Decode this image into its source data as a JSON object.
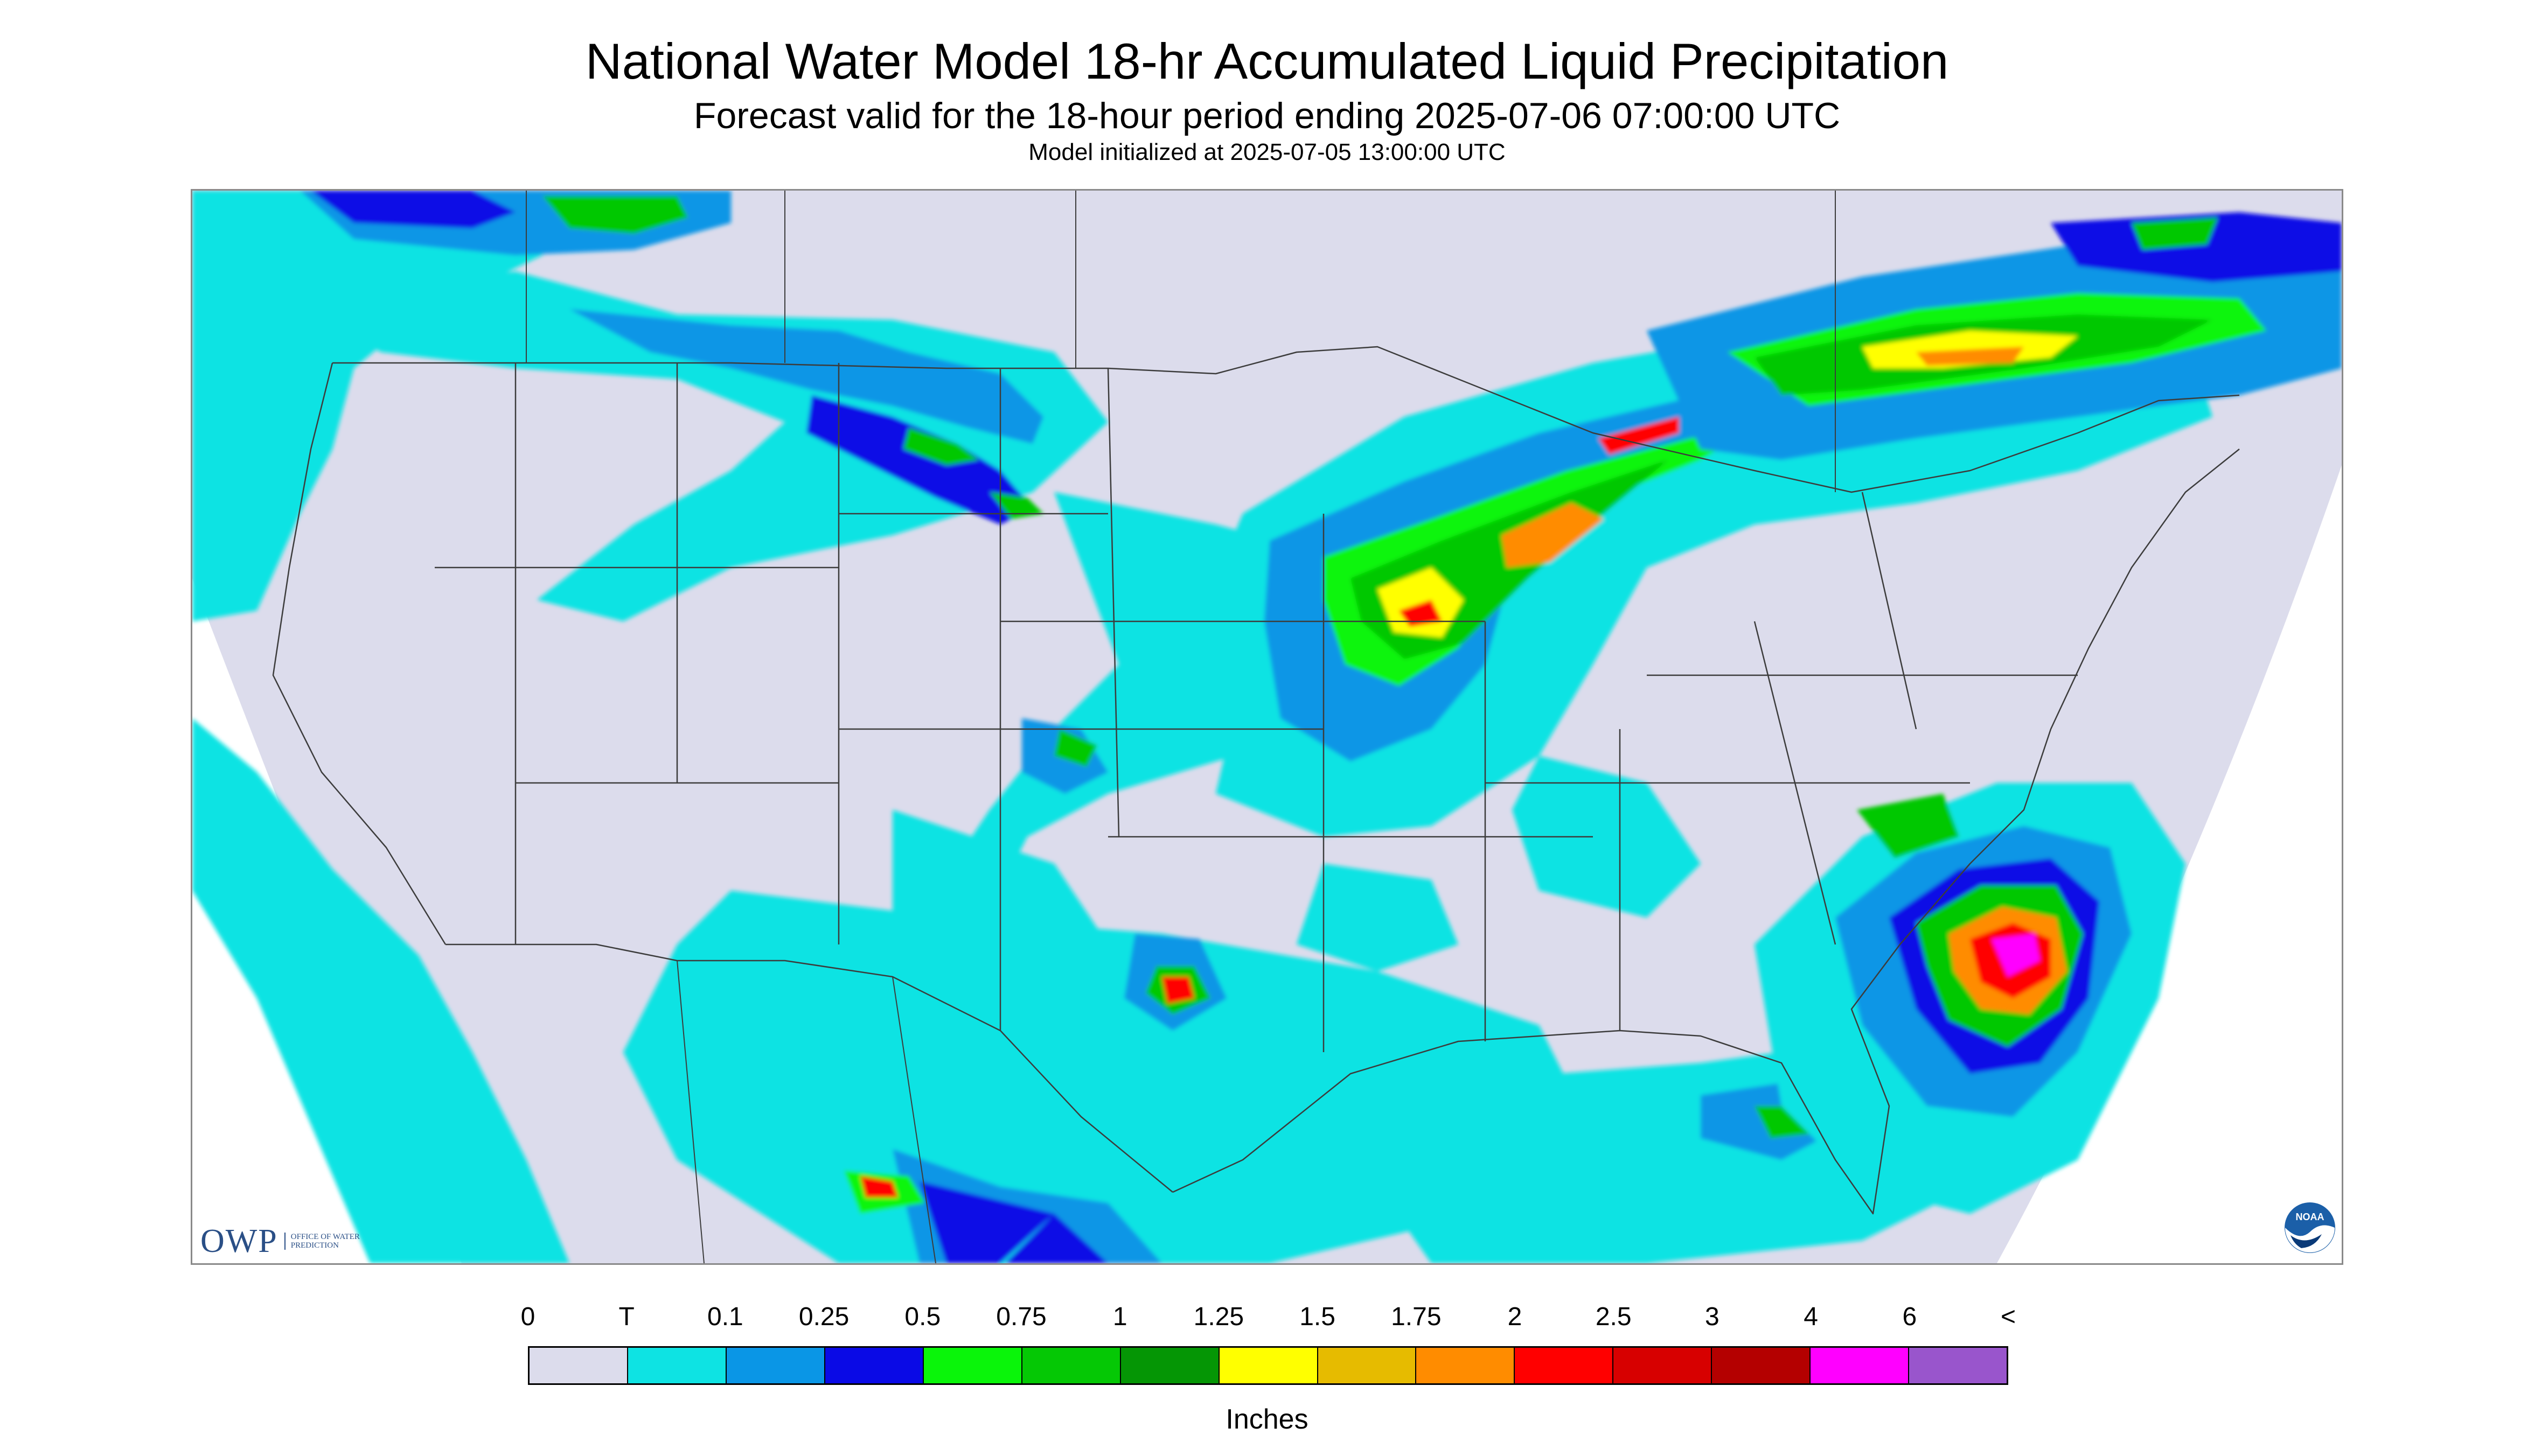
{
  "header": {
    "title": "National Water Model 18-hr Accumulated Liquid Precipitation",
    "subtitle": "Forecast valid for the 18-hour period ending 2025-07-06 07:00:00 UTC",
    "init": "Model initialized at 2025-07-05 13:00:00 UTC"
  },
  "logos": {
    "owp_mark": "OWP",
    "owp_text": "OFFICE OF WATER PREDICTION",
    "noaa_text": "NOAA"
  },
  "legend": {
    "labels": [
      "0",
      "T",
      "0.1",
      "0.25",
      "0.5",
      "0.75",
      "1",
      "1.25",
      "1.5",
      "1.75",
      "2",
      "2.5",
      "3",
      "4",
      "6",
      "<"
    ],
    "colors": [
      "#dcdcec",
      "#0ee3e3",
      "#0a96e6",
      "#0a0ae6",
      "#0af50a",
      "#05c805",
      "#059605",
      "#ffff00",
      "#e6bb00",
      "#ff8c00",
      "#ff0000",
      "#d70000",
      "#b40000",
      "#ff00ff",
      "#9955cc"
    ],
    "unit": "Inches"
  },
  "colors": {
    "no_data": "#ffffff",
    "zero": "#dcdcec",
    "boundary": "#3c3c3c"
  }
}
